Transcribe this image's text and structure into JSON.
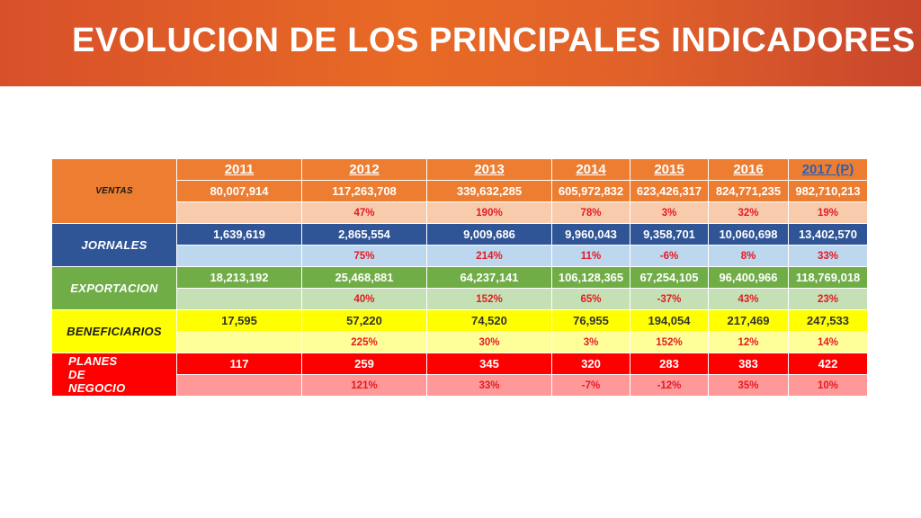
{
  "title": "EVOLUCION DE LOS PRINCIPALES INDICADORES",
  "colors": {
    "banner": "#e0602a",
    "ventas_dark": "#ed7d31",
    "ventas_light": "#f8cbad",
    "jornales_dark": "#2f5597",
    "jornales_light": "#bdd7ee",
    "exportacion_dark": "#70ad47",
    "exportacion_light": "#c5e0b4",
    "beneficiarios_dark": "#ffff00",
    "beneficiarios_light": "#ffff99",
    "planes_dark": "#ff0000",
    "planes_light": "#ff9999",
    "pct_text": "#e31b23",
    "projected_year": "#2e5fb0"
  },
  "chart_data": {
    "type": "table",
    "years": [
      "2011",
      "2012",
      "2013",
      "2014",
      "2015",
      "2016",
      "2017 (P)"
    ],
    "rows": [
      {
        "label": "VENTAS",
        "values": [
          "80,007,914",
          "117,263,708",
          "339,632,285",
          "605,972,832",
          "623,426,317",
          "824,771,235",
          "982,710,213"
        ],
        "growth": [
          "",
          "47%",
          "190%",
          "78%",
          "3%",
          "32%",
          "19%"
        ]
      },
      {
        "label": "JORNALES",
        "values": [
          "1,639,619",
          "2,865,554",
          "9,009,686",
          "9,960,043",
          "9,358,701",
          "10,060,698",
          "13,402,570"
        ],
        "growth": [
          "",
          "75%",
          "214%",
          "11%",
          "-6%",
          "8%",
          "33%"
        ]
      },
      {
        "label": "EXPORTACION",
        "values": [
          "18,213,192",
          "25,468,881",
          "64,237,141",
          "106,128,365",
          "67,254,105",
          "96,400,966",
          "118,769,018"
        ],
        "growth": [
          "",
          "40%",
          "152%",
          "65%",
          "-37%",
          "43%",
          "23%"
        ]
      },
      {
        "label": "BENEFICIARIOS",
        "values": [
          "17,595",
          "57,220",
          "74,520",
          "76,955",
          "194,054",
          "217,469",
          "247,533"
        ],
        "growth": [
          "",
          "225%",
          "30%",
          "3%",
          "152%",
          "12%",
          "14%"
        ]
      },
      {
        "label": "PLANES DE NEGOCIO",
        "values": [
          "117",
          "259",
          "345",
          "320",
          "283",
          "383",
          "422"
        ],
        "growth": [
          "",
          "121%",
          "33%",
          "-7%",
          "-12%",
          "35%",
          "10%"
        ]
      }
    ]
  }
}
